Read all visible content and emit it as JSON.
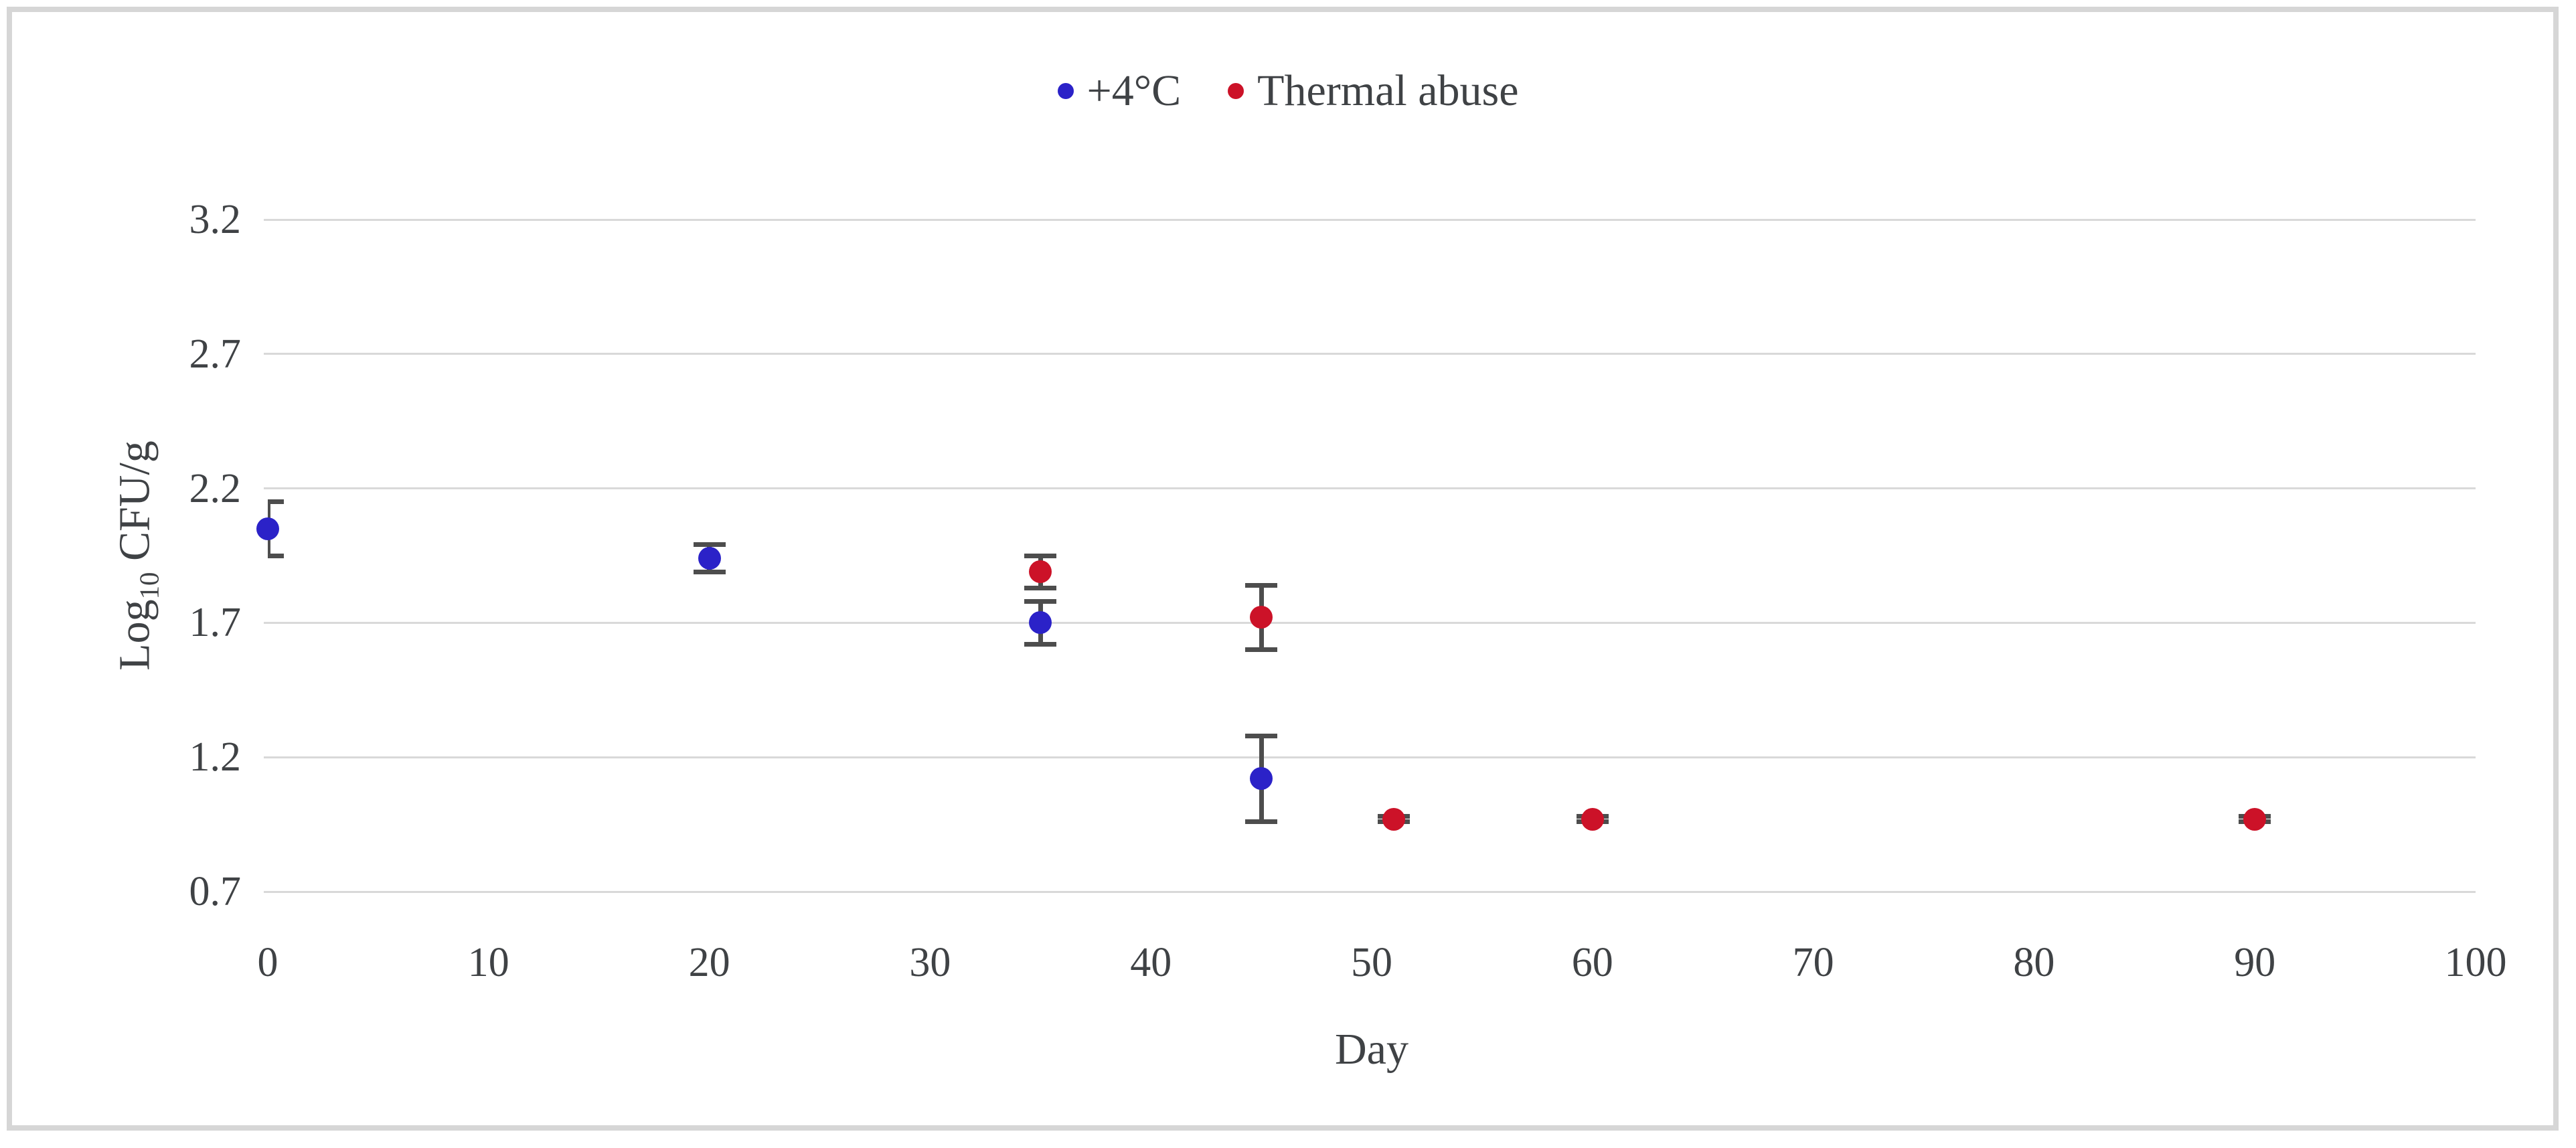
{
  "figure": {
    "background": "#FFFFFF",
    "border_color": "#D6D6D6",
    "text_color": "#3F4245"
  },
  "chart_data": {
    "type": "scatter",
    "title": "",
    "xlabel": "Day",
    "ylabel_prefix": "Log",
    "ylabel_subscript": "10",
    "ylabel_suffix": " CFU/g",
    "xlim": [
      0,
      100
    ],
    "ylim": [
      0.7,
      3.2
    ],
    "xticks": [
      0,
      10,
      20,
      30,
      40,
      50,
      60,
      70,
      80,
      90,
      100
    ],
    "yticks": [
      0.7,
      1.2,
      1.7,
      2.2,
      2.7,
      3.2
    ],
    "grid": "horizontal-only",
    "gridline_color": "#D9D9D9",
    "error_bar_color": "#4D4D4D",
    "legend_position": "top-center",
    "series": [
      {
        "id": "plus4c",
        "name": "+4°C",
        "color": "#2B22C8",
        "marker": "circle",
        "points": [
          {
            "x": 0,
            "y": 2.05,
            "err": 0.1
          },
          {
            "x": 20,
            "y": 1.94,
            "err": 0.05
          },
          {
            "x": 35,
            "y": 1.7,
            "err": 0.08
          },
          {
            "x": 45,
            "y": 1.12,
            "err": 0.16
          }
        ]
      },
      {
        "id": "thermal-abuse",
        "name": "Thermal abuse",
        "color": "#CC1228",
        "marker": "circle",
        "points": [
          {
            "x": 35,
            "y": 1.89,
            "err": 0.06
          },
          {
            "x": 45,
            "y": 1.72,
            "err": 0.12
          },
          {
            "x": 51,
            "y": 0.97,
            "err": 0.01
          },
          {
            "x": 60,
            "y": 0.97,
            "err": 0.01
          },
          {
            "x": 90,
            "y": 0.97,
            "err": 0.01
          }
        ]
      }
    ]
  }
}
